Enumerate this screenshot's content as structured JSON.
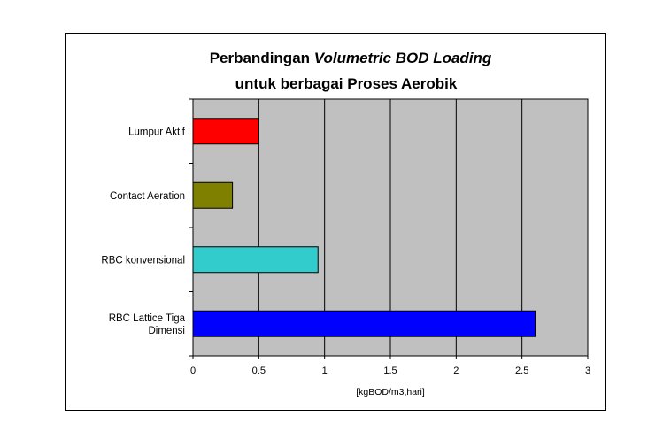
{
  "chart_data": {
    "type": "bar",
    "orientation": "horizontal",
    "title_parts": [
      {
        "text": "Perbandingan ",
        "italic": false
      },
      {
        "text": "Volumetric BOD Loading",
        "italic": true
      }
    ],
    "subtitle": "untuk berbagai Proses Aerobik",
    "categories": [
      [
        "Lumpur Aktif"
      ],
      [
        "Contact Aeration"
      ],
      [
        "RBC konvensional"
      ],
      [
        "RBC Lattice Tiga",
        "Dimensi"
      ]
    ],
    "values": [
      0.5,
      0.3,
      0.95,
      2.6
    ],
    "bar_colors": [
      "#ff0000",
      "#808000",
      "#33cccc",
      "#0000ff"
    ],
    "xlabel": "[kgBOD/m3,hari]",
    "xlim": [
      0,
      3
    ],
    "xticks": [
      "0",
      "0.5",
      "1",
      "1.5",
      "2",
      "2.5",
      "3"
    ],
    "grid": true,
    "plot_background": "#c0c0c0"
  }
}
